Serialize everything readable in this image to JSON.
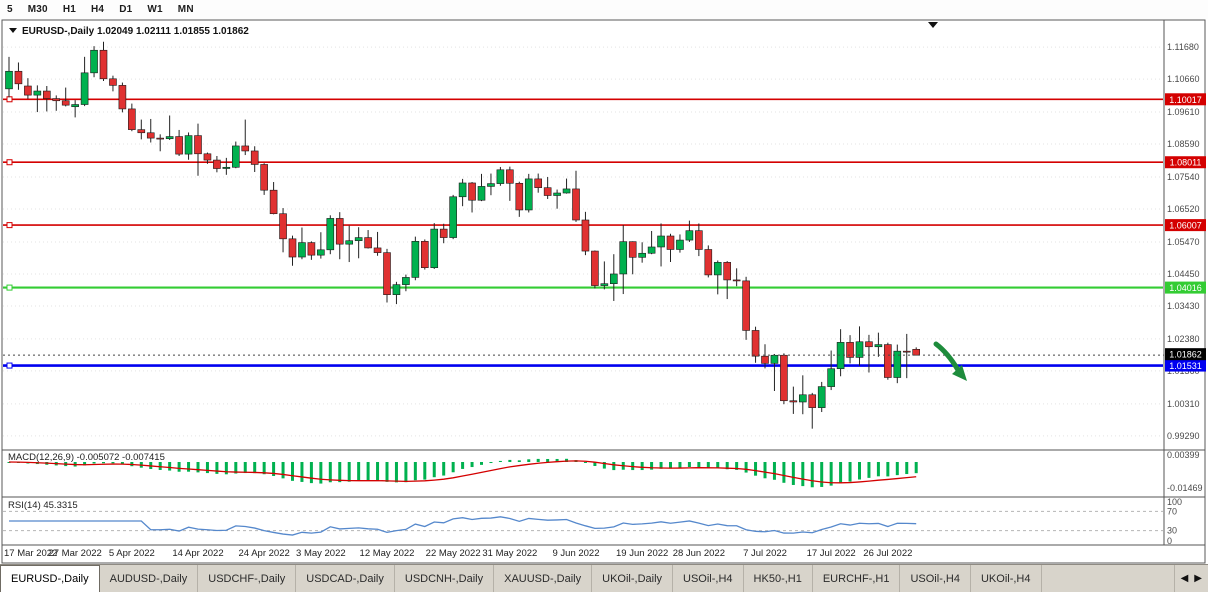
{
  "toolbar": {
    "timeframes": [
      "5",
      "M30",
      "H1",
      "H4",
      "D1",
      "W1",
      "MN"
    ]
  },
  "header": {
    "dropdown_icon": "chart-dropdown-triangle",
    "symbol": "EURUSD-,Daily",
    "open": "1.02049",
    "high": "1.02111",
    "low": "1.01855",
    "close": "1.01862"
  },
  "chart_data": {
    "type": "candlestick",
    "title": "EURUSD-,Daily",
    "ylim": [
      0.9884,
      1.1248
    ],
    "grid": "dotted-horizontal",
    "y_ticks": [
      "1.11680",
      "1.10660",
      "1.09610",
      "1.08590",
      "1.07540",
      "1.06520",
      "1.05470",
      "1.04450",
      "1.03430",
      "1.02380",
      "1.01360",
      "1.00310",
      "0.99290"
    ],
    "x_ticks": [
      {
        "label": "17 Mar 2022",
        "i": 0
      },
      {
        "label": "27 Mar 2022",
        "i": 7
      },
      {
        "label": "5 Apr 2022",
        "i": 13
      },
      {
        "label": "14 Apr 2022",
        "i": 20
      },
      {
        "label": "24 Apr 2022",
        "i": 27
      },
      {
        "label": "3 May 2022",
        "i": 33
      },
      {
        "label": "12 May 2022",
        "i": 40
      },
      {
        "label": "22 May 2022",
        "i": 47
      },
      {
        "label": "31 May 2022",
        "i": 53
      },
      {
        "label": "9 Jun 2022",
        "i": 60
      },
      {
        "label": "19 Jun 2022",
        "i": 67
      },
      {
        "label": "28 Jun 2022",
        "i": 73
      },
      {
        "label": "7 Jul 2022",
        "i": 80
      },
      {
        "label": "17 Jul 2022",
        "i": 87
      },
      {
        "label": "26 Jul 2022",
        "i": 93
      }
    ],
    "candles": [
      [
        1.1035,
        1.1137,
        1.1008,
        1.1091
      ],
      [
        1.1091,
        1.1119,
        1.1032,
        1.1051
      ],
      [
        1.1044,
        1.1069,
        1.1003,
        1.1015
      ],
      [
        1.1015,
        1.1046,
        1.0961,
        1.1028
      ],
      [
        1.1028,
        1.1044,
        1.0963,
        1.1004
      ],
      [
        1.1004,
        1.1014,
        1.0965,
        1.0997
      ],
      [
        1.0997,
        1.1039,
        1.0979,
        1.0983
      ],
      [
        1.0978,
        1.0999,
        1.0944,
        1.0985
      ],
      [
        1.0985,
        1.1137,
        1.098,
        1.1086
      ],
      [
        1.1086,
        1.1171,
        1.1072,
        1.1158
      ],
      [
        1.1158,
        1.1185,
        1.106,
        1.1067
      ],
      [
        1.1067,
        1.1077,
        1.1027,
        1.1046
      ],
      [
        1.1046,
        1.1055,
        1.096,
        1.0971
      ],
      [
        1.0971,
        1.0988,
        1.09,
        1.0905
      ],
      [
        1.0905,
        1.0937,
        1.0874,
        1.0895
      ],
      [
        1.0895,
        1.0939,
        1.0864,
        1.0878
      ],
      [
        1.0878,
        1.089,
        1.0836,
        1.0876
      ],
      [
        1.0876,
        1.095,
        1.0872,
        1.0883
      ],
      [
        1.0883,
        1.0904,
        1.0821,
        1.0827
      ],
      [
        1.0827,
        1.0896,
        1.0809,
        1.0886
      ],
      [
        1.0886,
        1.0924,
        1.0758,
        1.0828
      ],
      [
        1.0828,
        1.0832,
        1.0796,
        1.0808
      ],
      [
        1.0808,
        1.0821,
        1.0769,
        1.0781
      ],
      [
        1.0781,
        1.0815,
        1.0761,
        1.0785
      ],
      [
        1.0785,
        1.0867,
        1.0782,
        1.0853
      ],
      [
        1.0853,
        1.0937,
        1.0824,
        1.0837
      ],
      [
        1.0837,
        1.0852,
        1.077,
        1.0794
      ],
      [
        1.0794,
        1.0798,
        1.0697,
        1.0712
      ],
      [
        1.0712,
        1.0738,
        1.0635,
        1.0637
      ],
      [
        1.0637,
        1.0655,
        1.0514,
        1.0557
      ],
      [
        1.0557,
        1.0567,
        1.0471,
        1.0499
      ],
      [
        1.0499,
        1.0593,
        1.0492,
        1.0545
      ],
      [
        1.0545,
        1.0549,
        1.049,
        1.0505
      ],
      [
        1.0505,
        1.0578,
        1.0494,
        1.0522
      ],
      [
        1.0522,
        1.0632,
        1.0508,
        1.0622
      ],
      [
        1.0622,
        1.0642,
        1.0492,
        1.054
      ],
      [
        1.054,
        1.0599,
        1.0483,
        1.0551
      ],
      [
        1.0551,
        1.0594,
        1.0495,
        1.0561
      ],
      [
        1.0561,
        1.0585,
        1.0526,
        1.0528
      ],
      [
        1.0528,
        1.0579,
        1.0503,
        1.0513
      ],
      [
        1.0513,
        1.0525,
        1.0354,
        1.0379
      ],
      [
        1.0379,
        1.042,
        1.0349,
        1.0411
      ],
      [
        1.0411,
        1.0443,
        1.039,
        1.0434
      ],
      [
        1.0434,
        1.0564,
        1.0425,
        1.0549
      ],
      [
        1.0549,
        1.0555,
        1.0459,
        1.0465
      ],
      [
        1.0465,
        1.0607,
        1.0461,
        1.0588
      ],
      [
        1.0588,
        1.0605,
        1.0543,
        1.0561
      ],
      [
        1.0561,
        1.0697,
        1.0556,
        1.0691
      ],
      [
        1.0691,
        1.0748,
        1.0661,
        1.0735
      ],
      [
        1.0735,
        1.0738,
        1.0641,
        1.068
      ],
      [
        1.068,
        1.0764,
        1.0677,
        1.0724
      ],
      [
        1.0724,
        1.0765,
        1.0696,
        1.0733
      ],
      [
        1.0733,
        1.0786,
        1.0726,
        1.0777
      ],
      [
        1.0777,
        1.0787,
        1.0678,
        1.0734
      ],
      [
        1.0734,
        1.0739,
        1.0627,
        1.0649
      ],
      [
        1.0649,
        1.0764,
        1.0641,
        1.0748
      ],
      [
        1.0748,
        1.0765,
        1.0704,
        1.072
      ],
      [
        1.072,
        1.0754,
        1.0684,
        1.0695
      ],
      [
        1.0695,
        1.0714,
        1.0653,
        1.0703
      ],
      [
        1.0703,
        1.0749,
        1.0701,
        1.0716
      ],
      [
        1.0716,
        1.0774,
        1.0611,
        1.0617
      ],
      [
        1.0617,
        1.0643,
        1.0505,
        1.0518
      ],
      [
        1.0518,
        1.052,
        1.0399,
        1.0408
      ],
      [
        1.0408,
        1.0485,
        1.0396,
        1.0414
      ],
      [
        1.0414,
        1.0508,
        1.0359,
        1.0445
      ],
      [
        1.0445,
        1.0601,
        1.0381,
        1.0548
      ],
      [
        1.0548,
        1.0549,
        1.0444,
        1.0498
      ],
      [
        1.0498,
        1.0546,
        1.0481,
        1.0511
      ],
      [
        1.0511,
        1.0582,
        1.0508,
        1.0531
      ],
      [
        1.0531,
        1.0606,
        1.0469,
        1.0566
      ],
      [
        1.0566,
        1.0573,
        1.0483,
        1.0523
      ],
      [
        1.0523,
        1.0571,
        1.0513,
        1.0553
      ],
      [
        1.0553,
        1.0615,
        1.0547,
        1.0583
      ],
      [
        1.0583,
        1.0606,
        1.0502,
        1.0523
      ],
      [
        1.0523,
        1.0536,
        1.0434,
        1.0442
      ],
      [
        1.0442,
        1.0488,
        1.038,
        1.0482
      ],
      [
        1.0482,
        1.0486,
        1.0365,
        1.0426
      ],
      [
        1.0426,
        1.0463,
        1.0406,
        1.0423
      ],
      [
        1.0423,
        1.0436,
        1.0235,
        1.0265
      ],
      [
        1.0265,
        1.0277,
        1.0162,
        1.0183
      ],
      [
        1.0183,
        1.0221,
        1.0144,
        1.016
      ],
      [
        1.016,
        1.019,
        1.0072,
        1.0186
      ],
      [
        1.0186,
        1.0192,
        1.003,
        1.0041
      ],
      [
        1.0041,
        1.0086,
        0.9999,
        1.0037
      ],
      [
        1.0037,
        1.0122,
        0.9998,
        1.006
      ],
      [
        1.006,
        1.0066,
        0.9952,
        1.0019
      ],
      [
        1.0019,
        1.0101,
        1.0005,
        1.0086
      ],
      [
        1.0086,
        1.0201,
        1.0075,
        1.0143
      ],
      [
        1.0143,
        1.0269,
        1.0119,
        1.0227
      ],
      [
        1.0227,
        1.025,
        1.016,
        1.0179
      ],
      [
        1.0179,
        1.0278,
        1.0152,
        1.0229
      ],
      [
        1.0229,
        1.0251,
        1.0131,
        1.0213
      ],
      [
        1.0213,
        1.0258,
        1.0181,
        1.022
      ],
      [
        1.022,
        1.0226,
        1.0108,
        1.0115
      ],
      [
        1.0115,
        1.022,
        1.0097,
        1.0199
      ],
      [
        1.0199,
        1.0254,
        1.0113,
        1.0196
      ],
      [
        1.02049,
        1.02111,
        1.01855,
        1.01862
      ]
    ],
    "colors": {
      "up": "#00b14f",
      "down": "#e03131",
      "wick": "#222222",
      "resistance": "#d40000",
      "support": "#33cc33",
      "bid": "#0000f0",
      "current": "#000000",
      "macd_hist": "#00b14f",
      "macd_signal": "#d40000",
      "rsi_line": "#5588cc",
      "arrow": "#1e8c3c"
    },
    "hlines": [
      {
        "price": 1.10017,
        "label": "1.10017",
        "color": "#d40000",
        "width": 1.6,
        "name": "resistance-line-1"
      },
      {
        "price": 1.08011,
        "label": "1.08011",
        "color": "#d40000",
        "width": 1.6,
        "name": "resistance-line-2"
      },
      {
        "price": 1.06007,
        "label": "1.06007",
        "color": "#d40000",
        "width": 1.6,
        "name": "resistance-line-3"
      },
      {
        "price": 1.04016,
        "label": "1.04016",
        "color": "#33cc33",
        "width": 2.2,
        "name": "support-line"
      },
      {
        "price": 1.01531,
        "label": "1.01531",
        "color": "#0000f0",
        "width": 2.6,
        "name": "bid-level-line"
      }
    ],
    "current_price": {
      "value": 1.01862,
      "label": "1.01862"
    },
    "indicators": {
      "macd": {
        "label": "MACD(12,26,9)",
        "value": "-0.005072",
        "signal_value": "-0.007415",
        "params": [
          12,
          26,
          9
        ],
        "axis_ticks": [
          {
            "label": "0.00399",
            "v": 0.00399
          },
          {
            "label": "-0.01469",
            "v": -0.01469
          }
        ]
      },
      "rsi": {
        "label": "RSI(14)",
        "value": "45.3315",
        "period": 14,
        "levels": [
          70,
          30
        ],
        "axis_ticks": [
          {
            "label": "100",
            "v": 100
          },
          {
            "label": "70",
            "v": 70
          },
          {
            "label": "30",
            "v": 30
          },
          {
            "label": "0",
            "v": 0
          }
        ]
      }
    },
    "annotation_arrow": {
      "direction": "down-right",
      "color": "#1e8c3c"
    },
    "shift_marker": "black-triangle"
  },
  "tabs": {
    "items": [
      "EURUSD-,Daily",
      "AUDUSD-,Daily",
      "USDCHF-,Daily",
      "USDCAD-,Daily",
      "USDCNH-,Daily",
      "XAUUSD-,Daily",
      "UKOil-,Daily",
      "USOil-,H4",
      "HK50-,H1",
      "EURCHF-,H1",
      "USOil-,H4",
      "UKOil-,H4"
    ],
    "active_index": 0,
    "scroll_left": "◀",
    "scroll_right": "▶"
  }
}
